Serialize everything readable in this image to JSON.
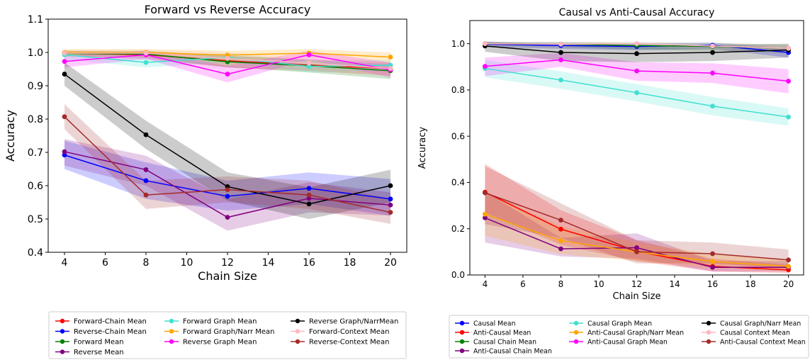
{
  "chart_data": [
    {
      "type": "line",
      "title": "Forward vs Reverse Accuracy",
      "xlabel": "Chain Size",
      "ylabel": "Accuracy",
      "x": [
        4,
        8,
        12,
        16,
        20
      ],
      "xlim": [
        3.2,
        20.8
      ],
      "ylim": [
        0.4,
        1.1
      ],
      "xticks": [
        4,
        6,
        8,
        10,
        12,
        14,
        16,
        18,
        20
      ],
      "yticks": [
        0.4,
        0.5,
        0.6,
        0.7,
        0.8,
        0.9,
        1.0,
        1.1
      ],
      "ytick_labels": [
        "0.4",
        "0.5",
        "0.6",
        "0.7",
        "0.8",
        "0.9",
        "1.0",
        "1.1"
      ],
      "grid": false,
      "legend_placement": "below",
      "series": [
        {
          "name": "Forward-Chain Mean",
          "color": "#ff0000",
          "values": [
            0.998,
            0.993,
            0.975,
            0.962,
            0.952
          ],
          "lower": [
            0.99,
            0.98,
            0.955,
            0.945,
            0.93
          ],
          "upper": [
            1.005,
            1.0,
            0.99,
            0.98,
            0.97
          ]
        },
        {
          "name": "Reverse-Chain Mean",
          "color": "#0000ff",
          "values": [
            0.692,
            0.615,
            0.568,
            0.592,
            0.56
          ],
          "lower": [
            0.65,
            0.56,
            0.525,
            0.545,
            0.51
          ],
          "upper": [
            0.735,
            0.67,
            0.615,
            0.64,
            0.62
          ]
        },
        {
          "name": "Forward Mean",
          "color": "#008000",
          "values": [
            0.997,
            0.995,
            0.972,
            0.96,
            0.945
          ],
          "lower": [
            0.988,
            0.985,
            0.955,
            0.94,
            0.92
          ],
          "upper": [
            1.005,
            1.005,
            0.99,
            0.978,
            0.965
          ]
        },
        {
          "name": "Reverse Mean",
          "color": "#800080",
          "values": [
            0.702,
            0.648,
            0.505,
            0.562,
            0.542
          ],
          "lower": [
            0.66,
            0.6,
            0.465,
            0.52,
            0.51
          ],
          "upper": [
            0.74,
            0.69,
            0.56,
            0.61,
            0.58
          ]
        },
        {
          "name": "Forward Graph Mean",
          "color": "#40e0d0",
          "values": [
            0.993,
            0.97,
            0.985,
            0.958,
            0.962
          ],
          "lower": [
            0.98,
            0.955,
            0.97,
            0.94,
            0.945
          ],
          "upper": [
            1.003,
            0.985,
            0.998,
            0.975,
            0.978
          ]
        },
        {
          "name": "Forward Graph/Narr Mean",
          "color": "#ffa500",
          "values": [
            1.0,
            1.0,
            0.992,
            0.998,
            0.986
          ],
          "lower": [
            0.99,
            0.99,
            0.975,
            0.985,
            0.965
          ],
          "upper": [
            1.01,
            1.01,
            1.005,
            1.01,
            1.0
          ]
        },
        {
          "name": "Reverse Graph Mean",
          "color": "#ff00ff",
          "values": [
            0.973,
            0.993,
            0.935,
            0.993,
            0.948
          ],
          "lower": [
            0.955,
            0.98,
            0.91,
            0.978,
            0.925
          ],
          "upper": [
            0.99,
            1.005,
            0.96,
            1.005,
            0.97
          ]
        },
        {
          "name": "Reverse Graph/NarrMean",
          "color": "#000000",
          "values": [
            0.935,
            0.753,
            0.597,
            0.545,
            0.6
          ],
          "lower": [
            0.9,
            0.71,
            0.555,
            0.5,
            0.55
          ],
          "upper": [
            0.97,
            0.795,
            0.64,
            0.595,
            0.648
          ]
        },
        {
          "name": "Forward-Context Mean",
          "color": "#ffb6c1",
          "values": [
            0.998,
            0.998,
            0.982,
            0.968,
            0.952
          ],
          "lower": [
            0.985,
            0.985,
            0.96,
            0.945,
            0.93
          ],
          "upper": [
            1.008,
            1.008,
            1.0,
            0.985,
            0.97
          ]
        },
        {
          "name": "Reverse-Context Mean",
          "color": "#a52a2a",
          "values": [
            0.807,
            0.572,
            0.588,
            0.572,
            0.52
          ],
          "lower": [
            0.77,
            0.53,
            0.55,
            0.53,
            0.485
          ],
          "upper": [
            0.845,
            0.615,
            0.628,
            0.615,
            0.56
          ]
        }
      ]
    },
    {
      "type": "line",
      "title": "Causal vs Anti-Causal Accuracy",
      "xlabel": "Chain Size",
      "ylabel": "Accuracy",
      "x": [
        4,
        8,
        12,
        16,
        20
      ],
      "xlim": [
        3.2,
        20.8
      ],
      "ylim": [
        0.0,
        1.1
      ],
      "xticks": [
        4,
        6,
        8,
        10,
        12,
        14,
        16,
        18,
        20
      ],
      "yticks": [
        0.0,
        0.2,
        0.4,
        0.6,
        0.8,
        1.0
      ],
      "ytick_labels": [
        "0.0",
        "0.2",
        "0.4",
        "0.6",
        "0.8",
        "1.0"
      ],
      "grid": false,
      "legend_placement": "below",
      "series": [
        {
          "name": "Causal Mean",
          "color": "#0000ff",
          "values": [
            0.998,
            0.992,
            0.988,
            0.993,
            0.962
          ],
          "lower": [
            0.985,
            0.978,
            0.972,
            0.978,
            0.94
          ],
          "upper": [
            1.005,
            1.003,
            1.0,
            1.005,
            0.98
          ]
        },
        {
          "name": "Anti-Causal Mean",
          "color": "#ff0000",
          "values": [
            0.358,
            0.198,
            0.103,
            0.037,
            0.022
          ],
          "lower": [
            0.27,
            0.13,
            0.06,
            0.015,
            0.008
          ],
          "upper": [
            0.48,
            0.28,
            0.15,
            0.07,
            0.045
          ]
        },
        {
          "name": "Causal Chain Mean",
          "color": "#008000",
          "values": [
            1.0,
            0.998,
            0.992,
            0.988,
            0.98
          ],
          "lower": [
            0.99,
            0.985,
            0.975,
            0.97,
            0.96
          ],
          "upper": [
            1.008,
            1.008,
            1.005,
            1.003,
            0.995
          ]
        },
        {
          "name": "Anti-Causal Chain Mean",
          "color": "#800080",
          "values": [
            0.247,
            0.113,
            0.118,
            0.033,
            0.033
          ],
          "lower": [
            0.14,
            0.08,
            0.07,
            0.015,
            0.015
          ],
          "upper": [
            0.36,
            0.16,
            0.18,
            0.06,
            0.06
          ]
        },
        {
          "name": "Causal Graph Mean",
          "color": "#40e0d0",
          "values": [
            0.893,
            0.843,
            0.788,
            0.73,
            0.683
          ],
          "lower": [
            0.855,
            0.805,
            0.75,
            0.69,
            0.645
          ],
          "upper": [
            0.93,
            0.88,
            0.825,
            0.77,
            0.72
          ]
        },
        {
          "name": "Anti-Causal Graph/Narr Mean",
          "color": "#ffa500",
          "values": [
            0.263,
            0.148,
            0.1,
            0.058,
            0.037
          ],
          "lower": [
            0.17,
            0.09,
            0.06,
            0.03,
            0.015
          ],
          "upper": [
            0.36,
            0.21,
            0.14,
            0.09,
            0.065
          ]
        },
        {
          "name": "Anti-Causal Graph Mean",
          "color": "#ff00ff",
          "values": [
            0.902,
            0.93,
            0.882,
            0.873,
            0.838
          ],
          "lower": [
            0.86,
            0.9,
            0.84,
            0.83,
            0.785
          ],
          "upper": [
            0.94,
            0.96,
            0.92,
            0.915,
            0.89
          ]
        },
        {
          "name": "Causal Graph/Narr Mean",
          "color": "#000000",
          "values": [
            0.99,
            0.962,
            0.957,
            0.962,
            0.973
          ],
          "lower": [
            0.965,
            0.925,
            0.92,
            0.925,
            0.94
          ],
          "upper": [
            1.01,
            0.995,
            0.99,
            0.995,
            1.0
          ]
        },
        {
          "name": "Causal Context Mean",
          "color": "#ffb6c1",
          "values": [
            1.0,
            0.998,
            1.0,
            0.99,
            0.98
          ],
          "lower": [
            0.99,
            0.985,
            0.99,
            0.975,
            0.96
          ],
          "upper": [
            1.008,
            1.008,
            1.008,
            1.003,
            0.995
          ]
        },
        {
          "name": "Anti-Causal Context Mean",
          "color": "#a52a2a",
          "values": [
            0.355,
            0.237,
            0.1,
            0.092,
            0.065
          ],
          "lower": [
            0.22,
            0.16,
            0.05,
            0.05,
            0.03
          ],
          "upper": [
            0.47,
            0.31,
            0.15,
            0.14,
            0.11
          ]
        }
      ]
    }
  ]
}
